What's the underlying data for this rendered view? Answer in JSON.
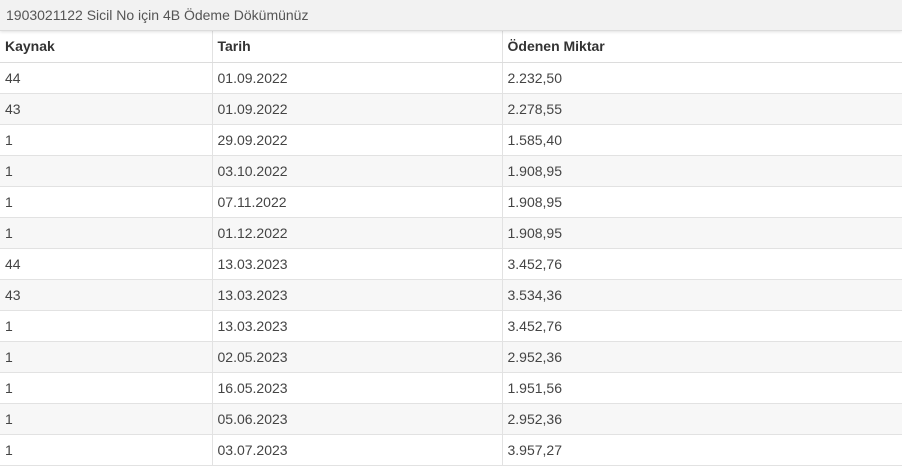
{
  "panel": {
    "title": "1903021122 Sicil No için 4B Ödeme Dökümünüz"
  },
  "table": {
    "headers": [
      "Kaynak",
      "Tarih",
      "Ödenen Miktar"
    ],
    "rows": [
      [
        "44",
        "01.09.2022",
        "2.232,50"
      ],
      [
        "43",
        "01.09.2022",
        "2.278,55"
      ],
      [
        "1",
        "29.09.2022",
        "1.585,40"
      ],
      [
        "1",
        "03.10.2022",
        "1.908,95"
      ],
      [
        "1",
        "07.11.2022",
        "1.908,95"
      ],
      [
        "1",
        "01.12.2022",
        "1.908,95"
      ],
      [
        "44",
        "13.03.2023",
        "3.452,76"
      ],
      [
        "43",
        "13.03.2023",
        "3.534,36"
      ],
      [
        "1",
        "13.03.2023",
        "3.452,76"
      ],
      [
        "1",
        "02.05.2023",
        "2.952,36"
      ],
      [
        "1",
        "16.05.2023",
        "1.951,56"
      ],
      [
        "1",
        "05.06.2023",
        "2.952,36"
      ],
      [
        "1",
        "03.07.2023",
        "3.957,27"
      ]
    ]
  },
  "colors": {
    "heading_bg": "#f2f2f2",
    "row_alt_bg": "#f7f7f7",
    "border": "#e2e2e2",
    "text": "#333333"
  }
}
